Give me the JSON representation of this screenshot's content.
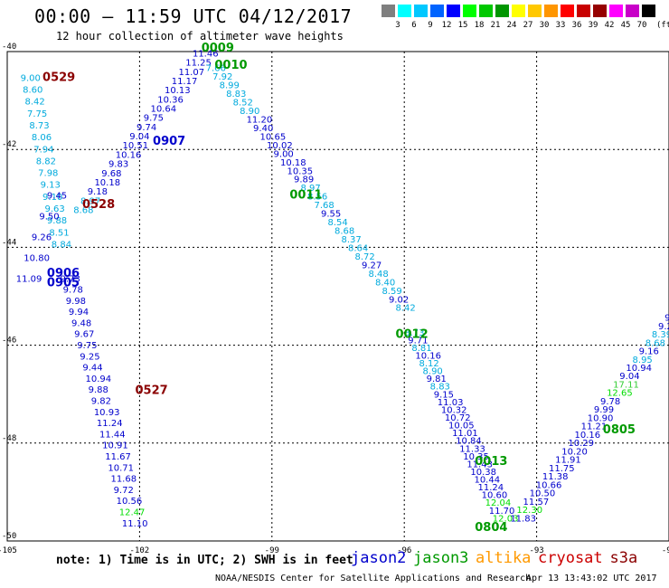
{
  "title": "00:00 – 11:59 UTC 04/12/2017",
  "subtitle": "12 hour collection of altimeter wave heights",
  "colorbar": {
    "unit": "(ft)",
    "colors": [
      "#7f7f7f",
      "#00ffff",
      "#00c8ff",
      "#0064ff",
      "#0000ff",
      "#00ff00",
      "#00c800",
      "#009600",
      "#ffff00",
      "#ffc800",
      "#ff9600",
      "#ff0000",
      "#c80000",
      "#960000",
      "#ff00ff",
      "#c800c8",
      "#000000"
    ],
    "labels": [
      "3",
      "6",
      "9",
      "12",
      "15",
      "18",
      "21",
      "24",
      "27",
      "30",
      "33",
      "36",
      "39",
      "42",
      "45",
      "70"
    ]
  },
  "axes": {
    "lon_ticks": [
      "-105",
      "-102",
      "-99",
      "-96",
      "-93",
      "-90"
    ],
    "lat_ticks": [
      "-40",
      "-42",
      "-44",
      "-46",
      "-48",
      "-50"
    ],
    "lon_range": [
      -105,
      -90
    ],
    "lat_range": [
      -50,
      -40
    ]
  },
  "note": "note: 1) Time is in UTC; 2) SWH is in feet",
  "satellites": [
    {
      "name": "jason2",
      "color": "#0000cc"
    },
    {
      "name": "jason3",
      "color": "#009900"
    },
    {
      "name": "altika",
      "color": "#ff9900"
    },
    {
      "name": "cryosat",
      "color": "#cc0000"
    },
    {
      "name": "s3a",
      "color": "#8b0000"
    }
  ],
  "credit": "NOAA/NESDIS Center for Satellite Applications and Research",
  "timestamp": "Apr 13 13:43:02 UTC 2017",
  "passes": [
    {
      "label": "0529",
      "color": "#8b0000",
      "lon": -104.2,
      "lat": -40.6
    },
    {
      "label": "0528",
      "color": "#8b0000",
      "lon": -103.3,
      "lat": -43.2
    },
    {
      "label": "0527",
      "color": "#8b0000",
      "lon": -102.1,
      "lat": -47.0
    },
    {
      "label": "0906",
      "color": "#0000cc",
      "lon": -104.1,
      "lat": -44.6
    },
    {
      "label": "0905",
      "color": "#0000cc",
      "lon": -104.1,
      "lat": -44.8
    },
    {
      "label": "0907",
      "color": "#0000cc",
      "lon": -101.7,
      "lat": -41.9
    },
    {
      "label": "0009",
      "color": "#009900",
      "lon": -100.6,
      "lat": -40.0
    },
    {
      "label": "0010",
      "color": "#009900",
      "lon": -100.3,
      "lat": -40.35
    },
    {
      "label": "0011",
      "color": "#009900",
      "lon": -98.6,
      "lat": -43.0
    },
    {
      "label": "0012",
      "color": "#009900",
      "lon": -96.2,
      "lat": -45.85
    },
    {
      "label": "0013",
      "color": "#009900",
      "lon": -94.4,
      "lat": -48.45
    },
    {
      "label": "0804",
      "color": "#009900",
      "lon": -94.4,
      "lat": -49.8
    },
    {
      "label": "0805",
      "color": "#009900",
      "lon": -91.5,
      "lat": -47.8
    }
  ],
  "tracks": [
    {
      "sat": "s3a_0529",
      "color": "#00aadd",
      "lon_start": -104.7,
      "lat_start": -40.6,
      "lon_end": -104.0,
      "lat_end": -44.0,
      "values": [
        "9.00",
        "8.60",
        "8.42",
        "7.75",
        "8.73",
        "8.06",
        "7.94",
        "8.82",
        "7.98",
        "9.13",
        "9.10",
        "9.63",
        "9.88",
        "8.51",
        "8.84"
      ]
    },
    {
      "sat": "s3a_0528",
      "color": "#0000cc",
      "lon_start": -104.1,
      "lat_start": -43.0,
      "lon_end": -104.8,
      "lat_end": -44.7,
      "values": [
        "9.45",
        "9.50",
        "9.26",
        "10.80",
        "11.09"
      ]
    },
    {
      "sat": "j2_0905",
      "color": "#0000cc",
      "lon_start": -103.8,
      "lat_start": -44.7,
      "lon_end": -102.4,
      "lat_end": -49.7,
      "values": [
        "9.73",
        "9.78",
        "9.98",
        "9.94",
        "9.48",
        "9.67",
        "9.75",
        "9.25",
        "9.44",
        "10.94",
        "9.88",
        "9.82",
        "10.93",
        "11.24",
        "11.44",
        "10.91",
        "11.67",
        "10.71",
        "11.68",
        "9.72",
        "10.56",
        "12.47",
        "11.10"
      ]
    },
    {
      "sat": "j2_0907",
      "color": "#0000cc",
      "lon_start": -103.5,
      "lat_start": -43.3,
      "lon_end": -100.8,
      "lat_end": -40.1,
      "values": [
        "8.68",
        "8.97",
        "9.18",
        "10.18",
        "9.68",
        "9.83",
        "10.16",
        "10.51",
        "9.04",
        "9.74",
        "9.75",
        "10.64",
        "10.36",
        "10.13",
        "11.17",
        "11.07",
        "11.25",
        "11.46"
      ]
    },
    {
      "sat": "j3_0010",
      "color": "#0000cc",
      "lon_start": -100.5,
      "lat_start": -40.4,
      "lon_end": -96.2,
      "lat_end": -45.3,
      "values": [
        "7.66",
        "7.92",
        "8.99",
        "8.83",
        "8.52",
        "8.90",
        "11.20",
        "9.40",
        "10.65",
        "10.02",
        "9.00",
        "10.18",
        "10.35",
        "9.89",
        "8.97",
        "8.56",
        "7.68",
        "9.55",
        "8.54",
        "8.68",
        "8.37",
        "8.64",
        "8.72",
        "9.27",
        "8.48",
        "8.40",
        "8.59",
        "9.02",
        "8.42"
      ]
    },
    {
      "sat": "j3_0012",
      "color": "#0000cc",
      "lon_start": -96.0,
      "lat_start": -45.8,
      "lon_end": -94.0,
      "lat_end": -49.6,
      "values": [
        "8.73",
        "9.71",
        "8.81",
        "10.16",
        "8.12",
        "8.90",
        "9.81",
        "8.83",
        "9.15",
        "11.03",
        "10.32",
        "10.72",
        "10.05",
        "11.01",
        "10.84",
        "11.33",
        "10.35",
        "11.43",
        "10.38",
        "10.44",
        "11.24",
        "10.60",
        "12.04",
        "11.70",
        "12.03"
      ]
    },
    {
      "sat": "j3_0805",
      "color": "#0000cc",
      "lon_start": -93.6,
      "lat_start": -49.6,
      "lon_end": -90.1,
      "lat_end": -45.5,
      "values": [
        "11.83",
        "12.30",
        "11.57",
        "10.50",
        "10.66",
        "11.38",
        "11.75",
        "11.91",
        "10.20",
        "10.29",
        "10.16",
        "11.21",
        "10.90",
        "9.99",
        "9.78",
        "12.65",
        "17.11",
        "9.04",
        "10.94",
        "8.95",
        "9.16",
        "8.68",
        "8.39",
        "9.2",
        "9"
      ]
    }
  ]
}
